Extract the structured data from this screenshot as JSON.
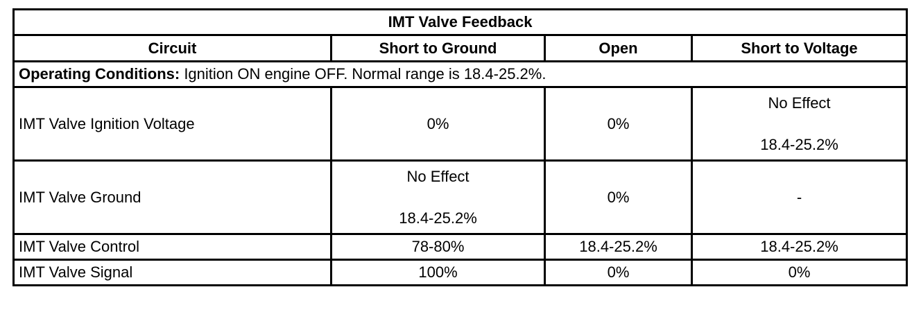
{
  "table": {
    "title": "IMT Valve Feedback",
    "headers": [
      "Circuit",
      "Short to Ground",
      "Open",
      "Short to Voltage"
    ],
    "operating_conditions": {
      "label": "Operating Conditions:",
      "text": " Ignition ON engine OFF. Normal range is 18.4-25.2%."
    },
    "rows": [
      {
        "circuit": "IMT Valve Ignition Voltage",
        "short_to_ground": "0%",
        "open": "0%",
        "short_to_voltage": [
          "No Effect",
          "18.4-25.2%"
        ]
      },
      {
        "circuit": "IMT Valve Ground",
        "short_to_ground": [
          "No Effect",
          "18.4-25.2%"
        ],
        "open": "0%",
        "short_to_voltage": "-"
      },
      {
        "circuit": "IMT Valve Control",
        "short_to_ground": "78-80%",
        "open": "18.4-25.2%",
        "short_to_voltage": "18.4-25.2%"
      },
      {
        "circuit": "IMT Valve Signal",
        "short_to_ground": "100%",
        "open": "0%",
        "short_to_voltage": "0%"
      }
    ]
  }
}
